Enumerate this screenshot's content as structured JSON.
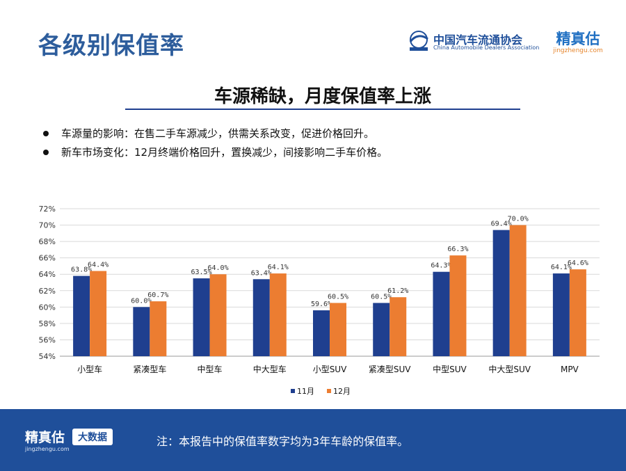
{
  "header": {
    "title": "各级别保值率"
  },
  "logos": {
    "cada_cn": "中国汽车流通协会",
    "cada_en": "China Automobile Dealers Association",
    "jzg_cn": "精真估",
    "jzg_url": "jingzhengu.com"
  },
  "subtitle": "车源稀缺，月度保值率上涨",
  "bullets": [
    "车源量的影响：在售二手车源减少，供需关系改变，促进价格回升。",
    "新车市场变化：12月终端价格回升，置换减少，间接影响二手车价格。"
  ],
  "chart_data": {
    "type": "bar",
    "categories": [
      "小型车",
      "紧凑型车",
      "中型车",
      "中大型车",
      "小型SUV",
      "紧凑型SUV",
      "中型SUV",
      "中大型SUV",
      "MPV"
    ],
    "series": [
      {
        "name": "11月",
        "color": "#1f3f8f",
        "values": [
          63.8,
          60.0,
          63.5,
          63.4,
          59.6,
          60.5,
          64.3,
          69.4,
          64.1
        ]
      },
      {
        "name": "12月",
        "color": "#ec7d31",
        "values": [
          64.4,
          60.7,
          64.0,
          64.1,
          60.5,
          61.2,
          66.3,
          70.0,
          64.6
        ]
      }
    ],
    "ylim": [
      54,
      72
    ],
    "yticks": [
      54,
      56,
      58,
      60,
      62,
      64,
      66,
      68,
      70,
      72
    ],
    "ytick_labels": [
      "54%",
      "56%",
      "58%",
      "60%",
      "62%",
      "64%",
      "66%",
      "68%",
      "70%",
      "72%"
    ],
    "data_labels": [
      [
        "63.8%",
        "60.0%",
        "63.5%",
        "63.4%",
        "59.6%",
        "60.5%",
        "64.3%",
        "69.4%",
        "64.1%"
      ],
      [
        "64.4%",
        "60.7%",
        "64.0%",
        "64.1%",
        "60.5%",
        "61.2%",
        "66.3%",
        "70.0%",
        "64.6%"
      ]
    ],
    "grid": true,
    "legend": "bottom"
  },
  "footer": {
    "brand_cn": "精真估",
    "brand_url": "jingzhengu.com",
    "badge": "大数据",
    "note": "注：本报告中的保值率数字均为3年车龄的保值率。"
  }
}
